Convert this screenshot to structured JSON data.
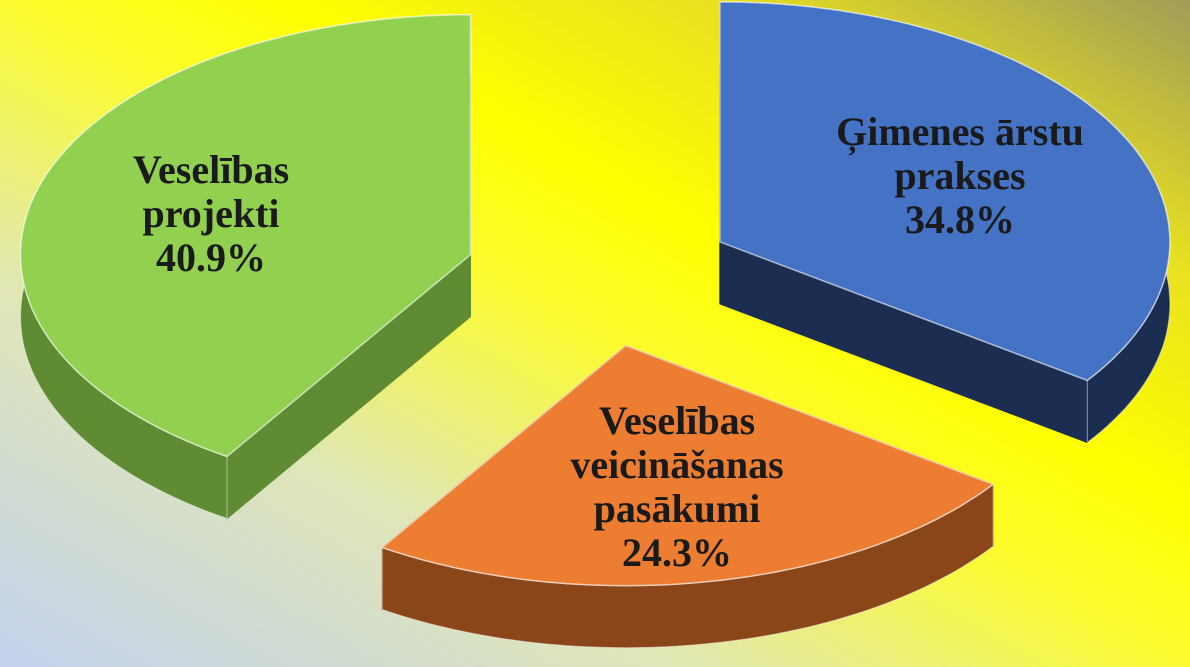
{
  "chart_data": {
    "type": "pie3d",
    "categories": [
      "Ģimenes ārstu prakses",
      "Veselības veicināšanas pasākumi",
      "Veselības projekti"
    ],
    "values": [
      34.8,
      24.3,
      40.9
    ],
    "value_labels": [
      "34.8%",
      "24.3%",
      "40.9%"
    ],
    "colors": [
      "#4472c4",
      "#ed7d31",
      "#92d050"
    ],
    "side_colors": [
      "#1c2d52",
      "#8a4519",
      "#5f8c33"
    ]
  }
}
